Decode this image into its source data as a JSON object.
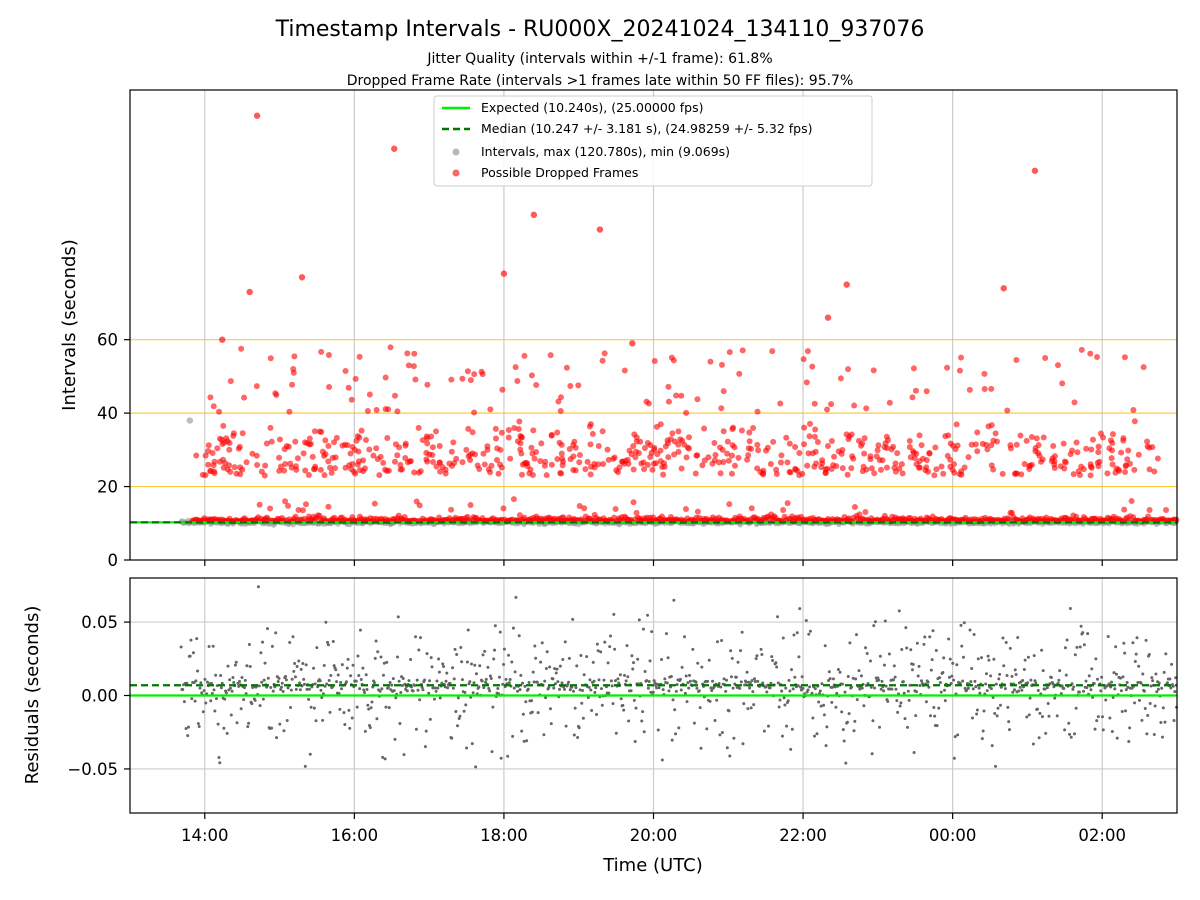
{
  "title": "Timestamp Intervals - RU000X_20241024_134110_937076",
  "subtitle_lines": [
    "Jitter Quality (intervals within +/-1 frame): 61.8%",
    "Dropped Frame Rate (intervals >1 frames late within 50 FF files): 95.7%"
  ],
  "colors": {
    "expected": "#00ee00",
    "median": "#007700",
    "intervals": "#999999",
    "dropped": "#ff0000",
    "threshold": "#ffc107",
    "residuals": "#666666",
    "grid": "#cccccc"
  },
  "chart_data": [
    {
      "type": "scatter",
      "ylabel": "Intervals (seconds)",
      "xlim": [
        "2024-10-24 13:00",
        "2024-10-25 03:00"
      ],
      "ylim": [
        0,
        128
      ],
      "x_ticks": [
        "14:00",
        "16:00",
        "18:00",
        "20:00",
        "22:00",
        "00:00",
        "02:00"
      ],
      "y_ticks": [
        "0",
        "20",
        "40",
        "60"
      ],
      "grid": "x only, plus horizontal reference lines at 20, 40, 60",
      "threshold_lines": [
        20,
        40,
        60
      ],
      "legend": {
        "position": "upper center",
        "entries": [
          "Expected (10.240s), (25.00000 fps)",
          "Median (10.247 +/- 3.181 s), (24.98259 +/- 5.32 fps)",
          "Intervals, max (120.780s), min (9.069s)",
          "Possible Dropped Frames"
        ]
      },
      "expected_interval": 10.24,
      "median_interval": 10.247,
      "time_start": "2024-10-24 13:41",
      "time_end": "2024-10-25 03:00",
      "max_interval": 120.78,
      "min_interval": 9.069,
      "notable_points": [
        {
          "time": "2024-10-24 13:48",
          "y": 38.0,
          "series": "intervals"
        },
        {
          "time": "2024-10-24 14:42",
          "y": 121.0,
          "series": "dropped"
        },
        {
          "time": "2024-10-24 16:32",
          "y": 112.0,
          "series": "dropped"
        },
        {
          "time": "2024-10-25 01:06",
          "y": 106.0,
          "series": "dropped"
        },
        {
          "time": "2024-10-24 18:24",
          "y": 94.0,
          "series": "dropped"
        },
        {
          "time": "2024-10-24 19:17",
          "y": 90.0,
          "series": "dropped"
        },
        {
          "time": "2024-10-24 18:00",
          "y": 78.0,
          "series": "dropped"
        },
        {
          "time": "2024-10-24 15:18",
          "y": 77.0,
          "series": "dropped"
        },
        {
          "time": "2024-10-24 22:35",
          "y": 75.0,
          "series": "dropped"
        },
        {
          "time": "2024-10-25 00:41",
          "y": 74.0,
          "series": "dropped"
        },
        {
          "time": "2024-10-24 14:36",
          "y": 73.0,
          "series": "dropped"
        },
        {
          "time": "2024-10-24 14:14",
          "y": 60.0,
          "series": "dropped"
        },
        {
          "time": "2024-10-24 22:20",
          "y": 66.0,
          "series": "dropped"
        },
        {
          "time": "2024-10-24 19:43",
          "y": 59.0,
          "series": "dropped"
        }
      ],
      "dropped_clusters": {
        "near_expected": [
          10.5,
          17.5
        ],
        "band_one": [
          23,
          38
        ],
        "band_two": [
          40,
          58
        ]
      }
    },
    {
      "type": "scatter",
      "xlabel": "Time (UTC)",
      "ylabel": "Residuals (seconds)",
      "xlim": [
        "2024-10-24 13:00",
        "2024-10-25 03:00"
      ],
      "ylim": [
        -0.08,
        0.08
      ],
      "x_ticks": [
        "14:00",
        "16:00",
        "18:00",
        "20:00",
        "22:00",
        "00:00",
        "02:00"
      ],
      "y_ticks": [
        "0.05",
        "0.00",
        "−0.05"
      ],
      "grid": "both",
      "expected_residual": 0.0,
      "median_residual": 0.007,
      "residual_spread": [
        -0.08,
        0.08
      ]
    }
  ]
}
